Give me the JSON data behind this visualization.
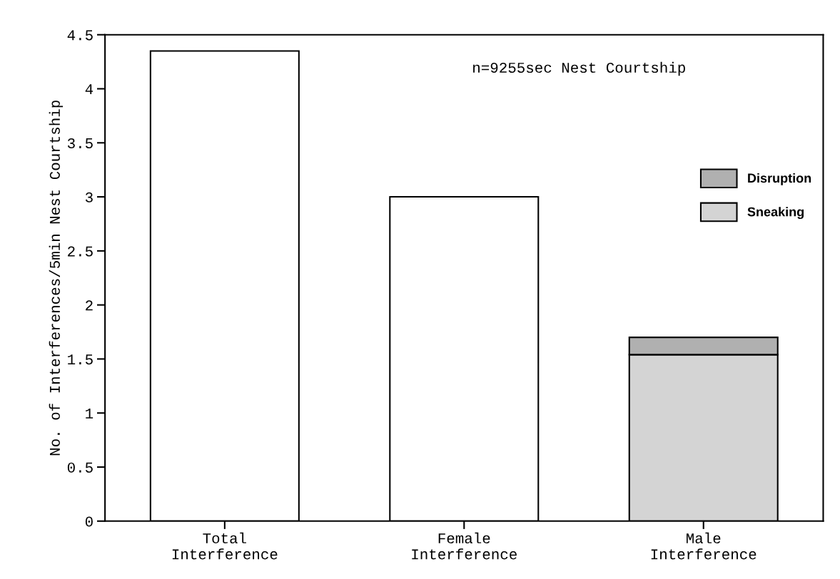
{
  "chart_data": {
    "type": "bar",
    "stacked": true,
    "categories": [
      "Total\nInterference",
      "Female\nInterference",
      "Male\nInterference"
    ],
    "ylabel": "No. of Interferences/5min Nest Courtship",
    "annotations": [
      "n=9255sec Nest Courtship"
    ],
    "series": [
      {
        "color": "#ffffff",
        "values": [
          4.35,
          3.0,
          null
        ]
      },
      {
        "name": "Sneaking",
        "color": "#d4d4d4",
        "values": [
          null,
          null,
          1.54
        ]
      },
      {
        "name": "Disruption",
        "color": "#b0b0b0",
        "values": [
          null,
          null,
          0.16
        ]
      }
    ],
    "ylim": [
      0,
      4.5
    ],
    "yticks": [
      0,
      {
        "value": 0.5,
        "label": "0.5"
      },
      1,
      {
        "value": 1.5,
        "label": "1.5"
      },
      2,
      {
        "value": 2.5,
        "label": "2.5"
      },
      3,
      {
        "value": 3.5,
        "label": "3.5"
      },
      4,
      {
        "value": 4.5,
        "label": "4.5"
      }
    ],
    "legend": "right",
    "grid": false
  }
}
